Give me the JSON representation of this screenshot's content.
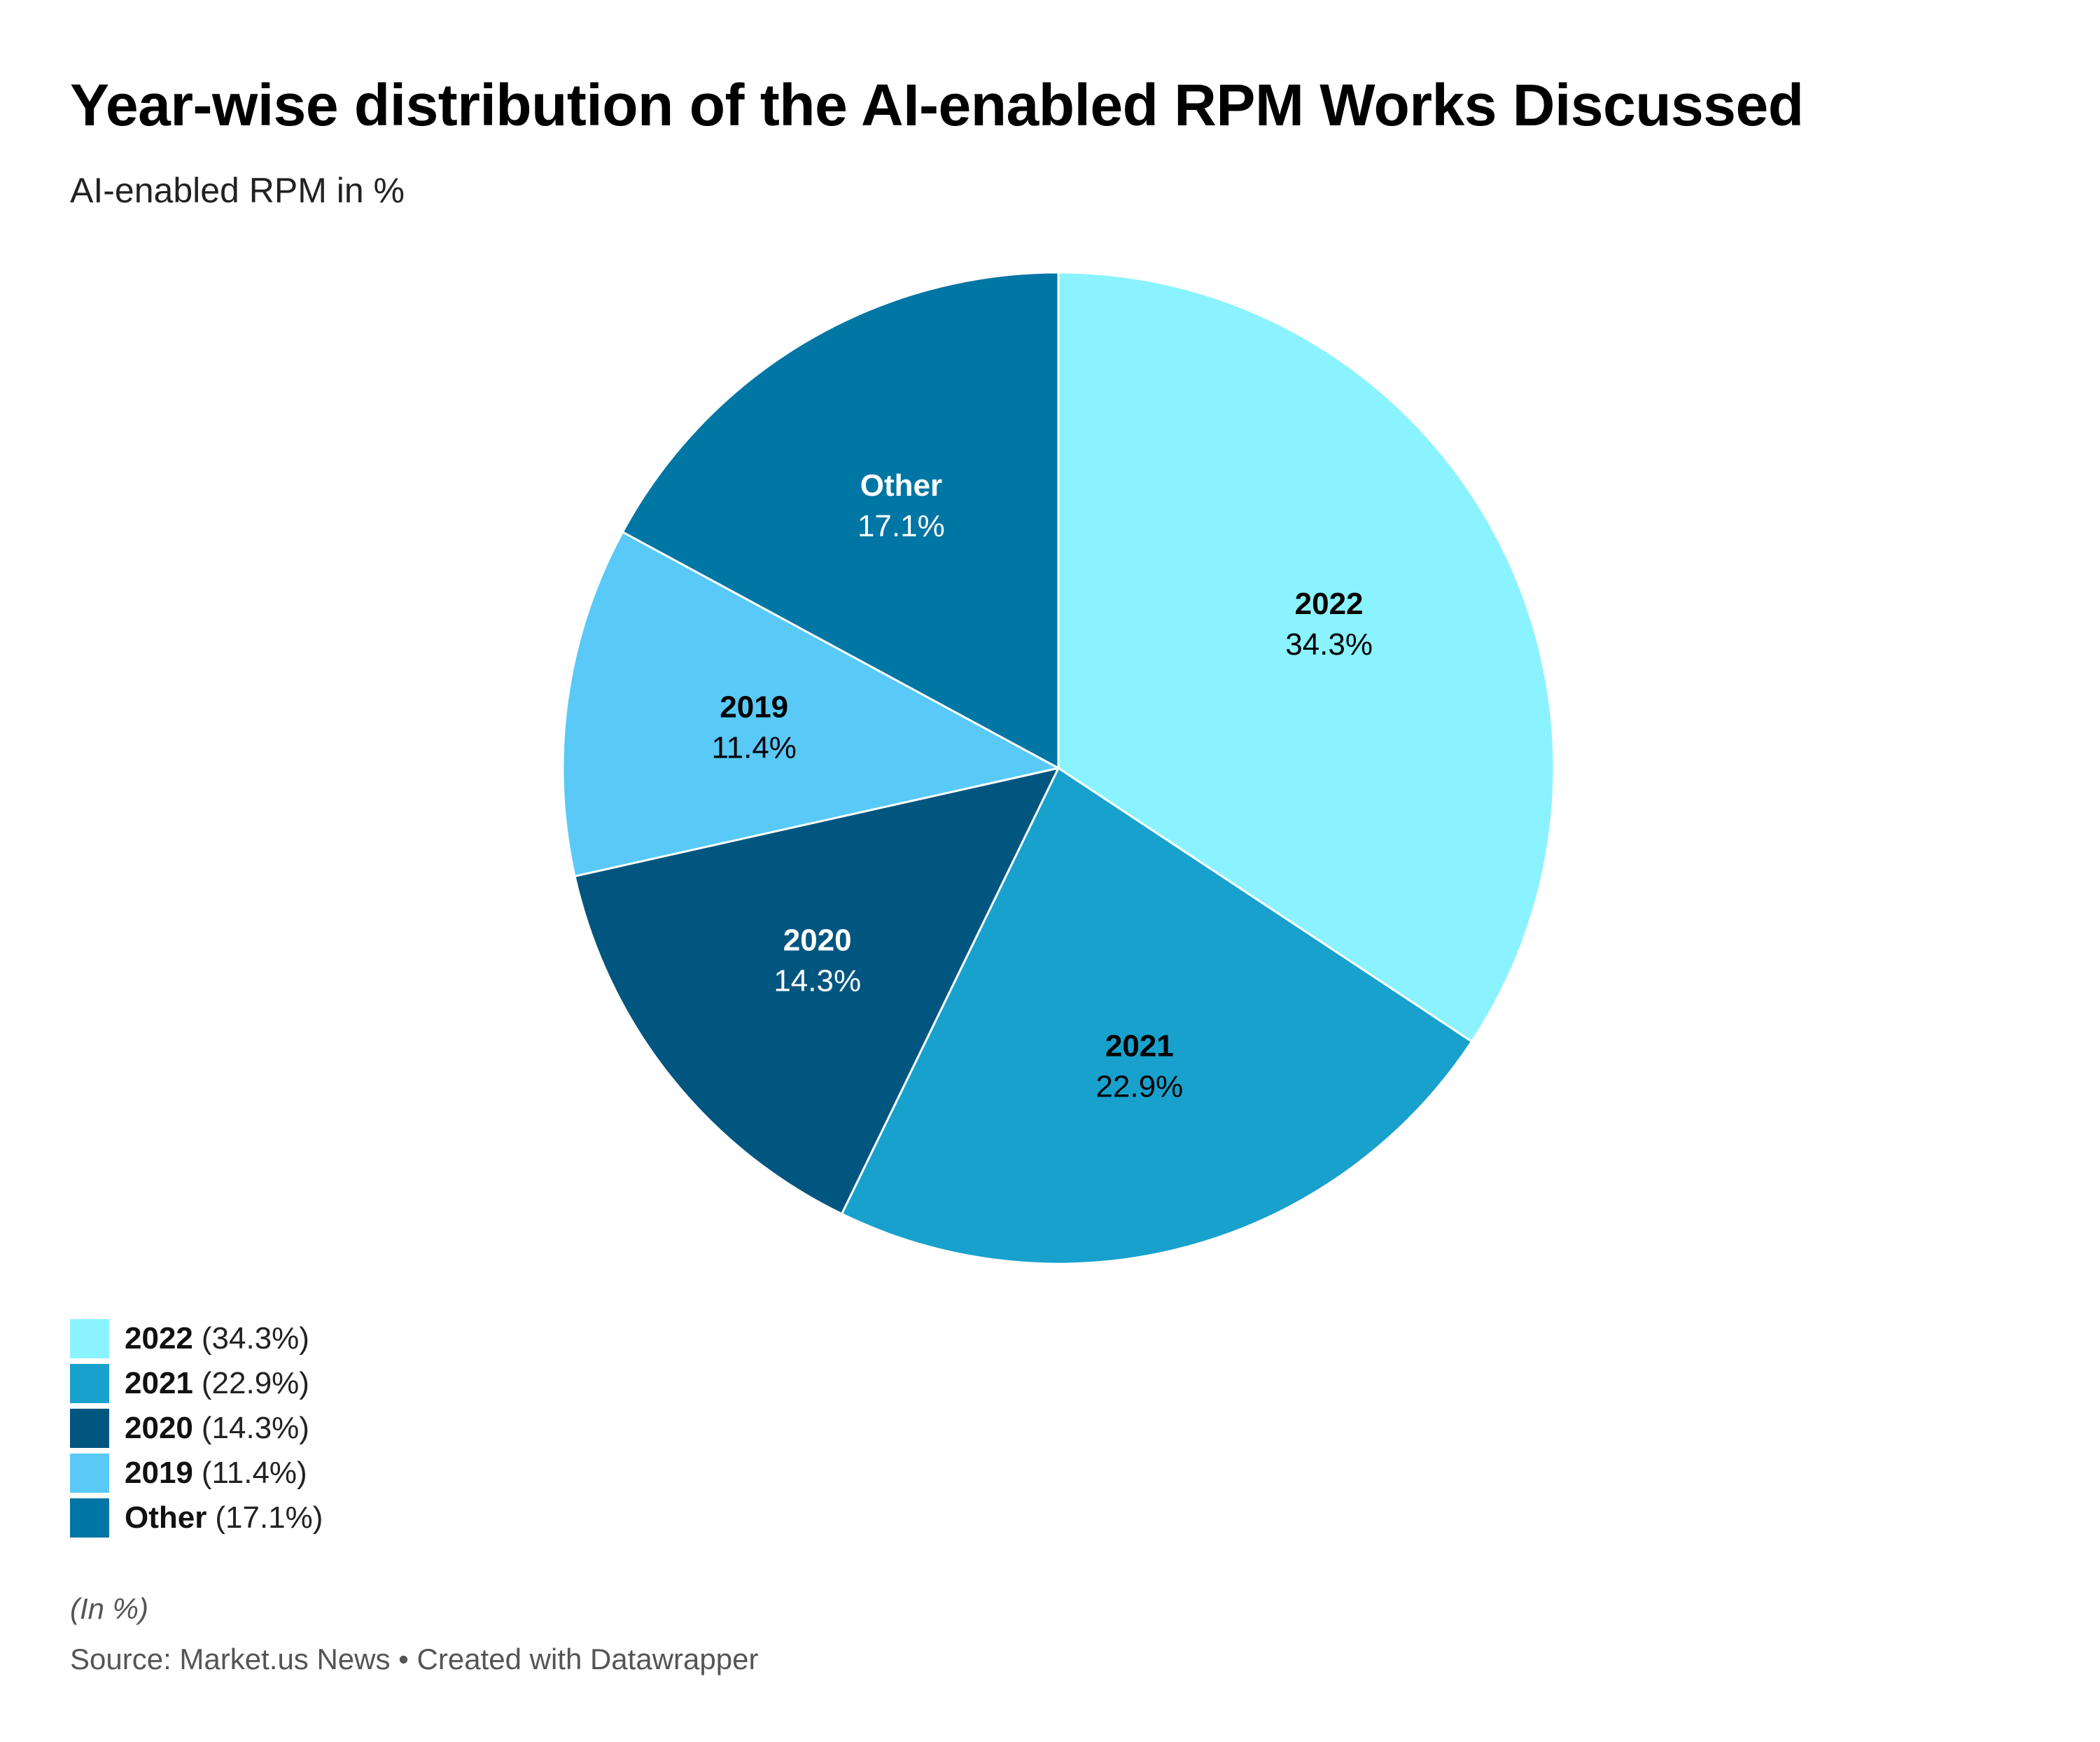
{
  "header": {
    "title": "Year-wise distribution of the AI-enabled RPM Works Discussed",
    "subtitle": "AI-enabled RPM in %"
  },
  "chart_data": {
    "type": "pie",
    "title": "Year-wise distribution of the AI-enabled RPM Works Discussed",
    "subtitle": "AI-enabled RPM in %",
    "unit": "%",
    "slices": [
      {
        "name": "2022",
        "value": 34.3,
        "display": "34.3%",
        "legend_value": "(34.3%)",
        "color": "#8af3ff",
        "label_color": "#000000"
      },
      {
        "name": "2021",
        "value": 22.9,
        "display": "22.9%",
        "legend_value": "(22.9%)",
        "color": "#18a1cd",
        "label_color": "#000000"
      },
      {
        "name": "2020",
        "value": 14.3,
        "display": "14.3%",
        "legend_value": "(14.3%)",
        "color": "#015680",
        "label_color": "#ffffff"
      },
      {
        "name": "2019",
        "value": 11.4,
        "display": "11.4%",
        "legend_value": "(11.4%)",
        "color": "#59c9f7",
        "label_color": "#000000"
      },
      {
        "name": "Other",
        "value": 17.1,
        "display": "17.1%",
        "legend_value": "(17.1%)",
        "color": "#0076a4",
        "label_color": "#ffffff"
      }
    ],
    "start_angle": "top",
    "direction": "clockwise",
    "legend_position": "bottom-left"
  },
  "footer": {
    "note": "(In %)",
    "source": "Source: Market.us News • Created with Datawrapper"
  }
}
